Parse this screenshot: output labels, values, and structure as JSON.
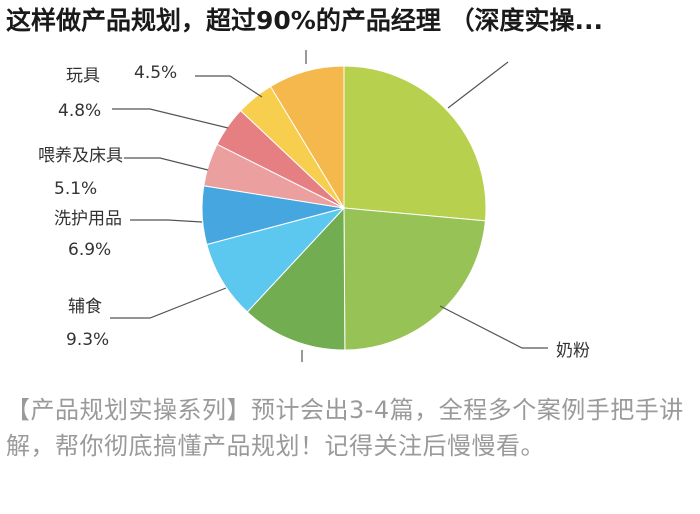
{
  "title": "这样做产品规划，超过90%的产品经理 （深度实操...",
  "caption": "【产品规划实操系列】预计会出3-4篇，全程多个案例手把手讲解，帮你彻底搞懂产品规划！记得关注后慢慢看。",
  "chart_data": {
    "type": "pie",
    "title": "",
    "slices": [
      {
        "label": "",
        "value": 27.5,
        "display": "",
        "color": "#b7d14f"
      },
      {
        "label": "奶粉",
        "value": 24.4,
        "display": "",
        "color": "#97c255"
      },
      {
        "label": "",
        "value": 12.5,
        "display": "",
        "color": "#72ad52"
      },
      {
        "label": "辅食",
        "value": 9.3,
        "display": "9.3%",
        "color": "#5cc8ef"
      },
      {
        "label": "洗护用品",
        "value": 6.9,
        "display": "6.9%",
        "color": "#46a6e0"
      },
      {
        "label": "喂养及床具",
        "value": 5.1,
        "display": "5.1%",
        "color": "#ec9f9f"
      },
      {
        "label": "玩具",
        "value": 4.8,
        "display": "4.8%",
        "color": "#e67f82"
      },
      {
        "label": "",
        "value": 4.5,
        "display": "4.5%",
        "color": "#f8ce4f"
      },
      {
        "label": "",
        "value": 9.0,
        "display": "",
        "color": "#f4b84c"
      }
    ]
  }
}
